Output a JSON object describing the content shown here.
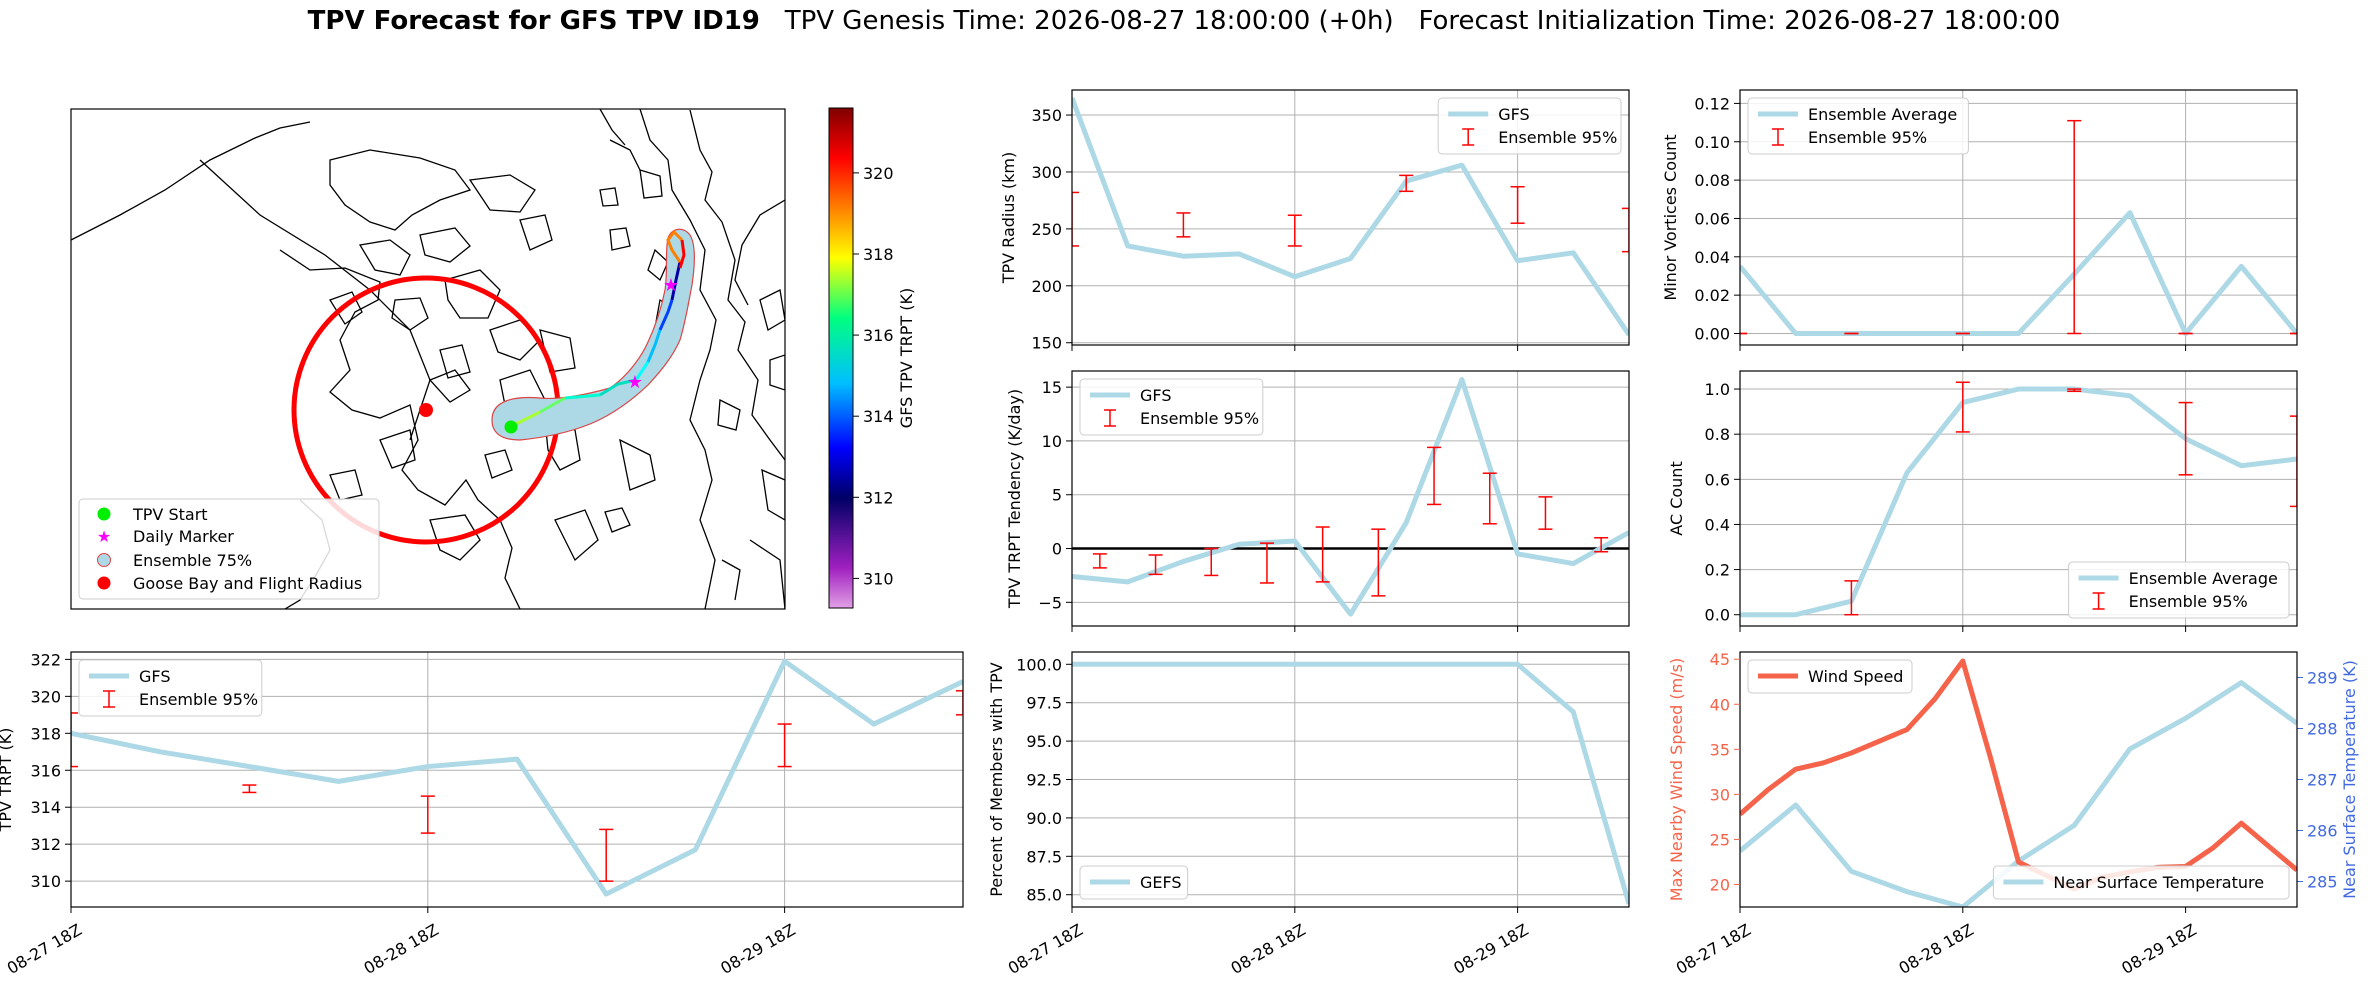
{
  "header": {
    "title_bold": "TPV Forecast for GFS TPV ID19",
    "genesis": "TPV Genesis Time: 2026-08-27 18:00:00 (+0h)",
    "init": "Forecast Initialization Time: 2026-08-27 18:00:00"
  },
  "colors": {
    "gfs_line": "#add8e6",
    "errorbar": "#ff0000",
    "wind": "#f4634a",
    "temp_axis": "#4169e1",
    "start": "#00ee00",
    "daily_marker": "#ff00ff",
    "goose_bay": "#ff0000"
  },
  "map": {
    "colorbar_label": "GFS TPV TRPT (K)",
    "colorbar_ticks": [
      "310",
      "312",
      "314",
      "316",
      "318",
      "320"
    ],
    "legend": [
      "TPV Start",
      "Daily Marker",
      "Ensemble 75%",
      "Goose Bay and Flight Radius"
    ]
  },
  "chart_data": [
    {
      "id": "radius",
      "type": "line",
      "ylabel": "TPV Radius (km)",
      "ylim": [
        148,
        372
      ],
      "yticks": [
        150,
        200,
        250,
        300,
        350
      ],
      "ytick_labels": [
        "150",
        "200",
        "250",
        "300",
        "350"
      ],
      "x_tick_labels": [],
      "legend": [
        "GFS",
        "Ensemble 95%"
      ],
      "legend_loc": "upper right",
      "grid": true,
      "series": [
        {
          "name": "GFS",
          "x": [
            0,
            6,
            12,
            18,
            24,
            30,
            36,
            42,
            48,
            54,
            60
          ],
          "values": [
            365,
            235,
            226,
            228,
            208,
            224,
            292,
            306,
            222,
            229,
            157
          ]
        }
      ],
      "errorbars": [
        {
          "x": 0,
          "lo": 235,
          "hi": 282
        },
        {
          "x": 12,
          "lo": 243,
          "hi": 264
        },
        {
          "x": 24,
          "lo": 235,
          "hi": 262
        },
        {
          "x": 36,
          "lo": 283,
          "hi": 297
        },
        {
          "x": 48,
          "lo": 255,
          "hi": 287
        },
        {
          "x": 60,
          "lo": 230,
          "hi": 268
        }
      ]
    },
    {
      "id": "minor",
      "type": "line",
      "ylabel": "Minor Vortices Count",
      "ylim": [
        -0.006,
        0.127
      ],
      "yticks": [
        0,
        0.02,
        0.04,
        0.06,
        0.08,
        0.1,
        0.12
      ],
      "ytick_labels": [
        "0.00",
        "0.02",
        "0.04",
        "0.06",
        "0.08",
        "0.10",
        "0.12"
      ],
      "x_tick_labels": [],
      "legend": [
        "Ensemble Average",
        "Ensemble 95%"
      ],
      "legend_loc": "upper left",
      "grid": true,
      "series": [
        {
          "name": "Ensemble Average",
          "x": [
            0,
            6,
            12,
            18,
            24,
            30,
            36,
            42,
            48,
            54,
            60
          ],
          "values": [
            0.035,
            0,
            0,
            0,
            0,
            0,
            0.031,
            0.063,
            0,
            0.035,
            0
          ]
        }
      ],
      "errorbars": [
        {
          "x": 0,
          "lo": 0,
          "hi": 0
        },
        {
          "x": 12,
          "lo": 0,
          "hi": 0
        },
        {
          "x": 24,
          "lo": 0,
          "hi": 0
        },
        {
          "x": 36,
          "lo": 0,
          "hi": 0.111
        },
        {
          "x": 48,
          "lo": 0,
          "hi": 0
        },
        {
          "x": 60,
          "lo": 0,
          "hi": 0
        }
      ]
    },
    {
      "id": "tendency",
      "type": "line",
      "ylabel": "TPV TRPT Tendency (K/day)",
      "ylim": [
        -7.2,
        16.5
      ],
      "yticks": [
        -5,
        0,
        5,
        10,
        15
      ],
      "ytick_labels": [
        "−5",
        "0",
        "5",
        "10",
        "15"
      ],
      "x_tick_labels": [],
      "zero_line": true,
      "legend": [
        "GFS",
        "Ensemble 95%"
      ],
      "legend_loc": "upper left",
      "grid": true,
      "series": [
        {
          "name": "GFS",
          "x": [
            0,
            6,
            12,
            18,
            24,
            30,
            36,
            42,
            48,
            54,
            60
          ],
          "values": [
            -2.6,
            -3.1,
            -1.2,
            0.4,
            0.7,
            -6.1,
            2.4,
            15.7,
            -0.5,
            -1.4,
            1.5
          ]
        }
      ],
      "errorbars": [
        {
          "x": 3,
          "lo": -1.8,
          "hi": -0.5
        },
        {
          "x": 9,
          "lo": -2.4,
          "hi": -0.6
        },
        {
          "x": 15,
          "lo": -2.5,
          "hi": 0
        },
        {
          "x": 21,
          "lo": -3.2,
          "hi": 0.5
        },
        {
          "x": 27,
          "lo": -3.1,
          "hi": 2
        },
        {
          "x": 33,
          "lo": -4.4,
          "hi": 1.8
        },
        {
          "x": 39,
          "lo": 4.1,
          "hi": 9.4
        },
        {
          "x": 45,
          "lo": 2.3,
          "hi": 7
        },
        {
          "x": 51,
          "lo": 1.8,
          "hi": 4.8
        },
        {
          "x": 57,
          "lo": -0.3,
          "hi": 1
        }
      ]
    },
    {
      "id": "ac",
      "type": "line",
      "ylabel": "AC Count",
      "ylim": [
        -0.05,
        1.08
      ],
      "yticks": [
        0,
        0.2,
        0.4,
        0.6,
        0.8,
        1.0
      ],
      "ytick_labels": [
        "0.0",
        "0.2",
        "0.4",
        "0.6",
        "0.8",
        "1.0"
      ],
      "x_tick_labels": [],
      "legend": [
        "Ensemble Average",
        "Ensemble 95%"
      ],
      "legend_loc": "lower right",
      "grid": true,
      "series": [
        {
          "name": "Ensemble Average",
          "x": [
            0,
            6,
            12,
            18,
            24,
            30,
            36,
            42,
            48,
            54,
            60
          ],
          "values": [
            0,
            0,
            0.06,
            0.63,
            0.94,
            1.0,
            1.0,
            0.97,
            0.78,
            0.66,
            0.69
          ]
        }
      ],
      "errorbars": [
        {
          "x": 12,
          "lo": 0,
          "hi": 0.15
        },
        {
          "x": 24,
          "lo": 0.81,
          "hi": 1.03
        },
        {
          "x": 36,
          "lo": 0.99,
          "hi": 1.0
        },
        {
          "x": 48,
          "lo": 0.62,
          "hi": 0.94
        },
        {
          "x": 60,
          "lo": 0.48,
          "hi": 0.88
        }
      ]
    },
    {
      "id": "trpt",
      "type": "line",
      "ylabel": "TPV TRPT (K)",
      "ylim": [
        308.6,
        322.4
      ],
      "yticks": [
        310,
        312,
        314,
        316,
        318,
        320,
        322
      ],
      "ytick_labels": [
        "310",
        "312",
        "314",
        "316",
        "318",
        "320",
        "322"
      ],
      "x_tick_labels": [
        {
          "x": 0,
          "label": "08-27 18Z"
        },
        {
          "x": 24,
          "label": "08-28 18Z"
        },
        {
          "x": 48,
          "label": "08-29 18Z"
        }
      ],
      "legend": [
        "GFS",
        "Ensemble 95%"
      ],
      "legend_loc": "upper left",
      "grid": true,
      "series": [
        {
          "name": "GFS",
          "x": [
            0,
            6,
            12,
            18,
            24,
            30,
            36,
            42,
            48,
            54,
            60
          ],
          "values": [
            318.0,
            317.0,
            316.2,
            315.4,
            316.2,
            316.6,
            309.3,
            311.7,
            321.9,
            318.5,
            320.8
          ]
        }
      ],
      "errorbars": [
        {
          "x": 0,
          "lo": 316.2,
          "hi": 319.1
        },
        {
          "x": 12,
          "lo": 314.8,
          "hi": 315.2
        },
        {
          "x": 24,
          "lo": 312.6,
          "hi": 314.6
        },
        {
          "x": 36,
          "lo": 310.0,
          "hi": 312.8
        },
        {
          "x": 48,
          "lo": 316.2,
          "hi": 318.5
        },
        {
          "x": 60,
          "lo": 319.0,
          "hi": 320.3
        }
      ]
    },
    {
      "id": "percent",
      "type": "line",
      "ylabel": "Percent of Members with TPV",
      "ylim": [
        84.2,
        100.8
      ],
      "yticks": [
        85,
        87.5,
        90,
        92.5,
        95,
        97.5,
        100
      ],
      "ytick_labels": [
        "85.0",
        "87.5",
        "90.0",
        "92.5",
        "95.0",
        "97.5",
        "100.0"
      ],
      "x_tick_labels": [
        {
          "x": 0,
          "label": "08-27 18Z"
        },
        {
          "x": 24,
          "label": "08-28 18Z"
        },
        {
          "x": 48,
          "label": "08-29 18Z"
        }
      ],
      "legend": [
        "GEFS"
      ],
      "legend_loc": "lower left",
      "grid": true,
      "series": [
        {
          "name": "GEFS",
          "x": [
            0,
            6,
            12,
            18,
            24,
            30,
            36,
            42,
            48,
            54,
            60
          ],
          "values": [
            100,
            100,
            100,
            100,
            100,
            100,
            100,
            100,
            100,
            96.9,
            84.4
          ]
        }
      ],
      "errorbars": []
    },
    {
      "id": "wind_temp",
      "type": "line",
      "ylabel": "Max Nearby Wind Speed (m/s)",
      "ylim": [
        17.5,
        45.8
      ],
      "yticks": [
        20,
        25,
        30,
        35,
        40,
        45
      ],
      "ytick_labels": [
        "20",
        "25",
        "30",
        "35",
        "40",
        "45"
      ],
      "y2label": "Near Surface Temperature (K)",
      "y2lim": [
        284.5,
        289.5
      ],
      "y2ticks": [
        285,
        286,
        287,
        288,
        289
      ],
      "y2tick_labels": [
        "285",
        "286",
        "287",
        "288",
        "289"
      ],
      "x_tick_labels": [
        {
          "x": 0,
          "label": "08-27 18Z"
        },
        {
          "x": 24,
          "label": "08-28 18Z"
        },
        {
          "x": 48,
          "label": "08-29 18Z"
        }
      ],
      "legend": [
        "Wind Speed"
      ],
      "legend2": [
        "Near Surface Temperature"
      ],
      "grid": false,
      "series": [
        {
          "name": "Wind Speed",
          "x": [
            0,
            3,
            6,
            9,
            12,
            15,
            18,
            21,
            24,
            27,
            30,
            33,
            36,
            39,
            42,
            45,
            48,
            51,
            54,
            57,
            60
          ],
          "values": [
            27.8,
            30.5,
            32.8,
            33.5,
            34.6,
            35.9,
            37.2,
            40.6,
            44.8,
            34,
            22.5,
            21,
            19.5,
            20.8,
            21.4,
            21.9,
            22.0,
            24.1,
            26.8,
            24.2,
            21.6
          ]
        }
      ],
      "series2": [
        {
          "name": "Near Surface Temperature",
          "x": [
            0,
            6,
            12,
            18,
            24,
            30,
            36,
            42,
            48,
            54,
            60
          ],
          "values": [
            285.6,
            286.5,
            285.2,
            284.8,
            284.5,
            285.4,
            286.1,
            287.6,
            288.2,
            288.9,
            288.1
          ]
        }
      ]
    }
  ]
}
